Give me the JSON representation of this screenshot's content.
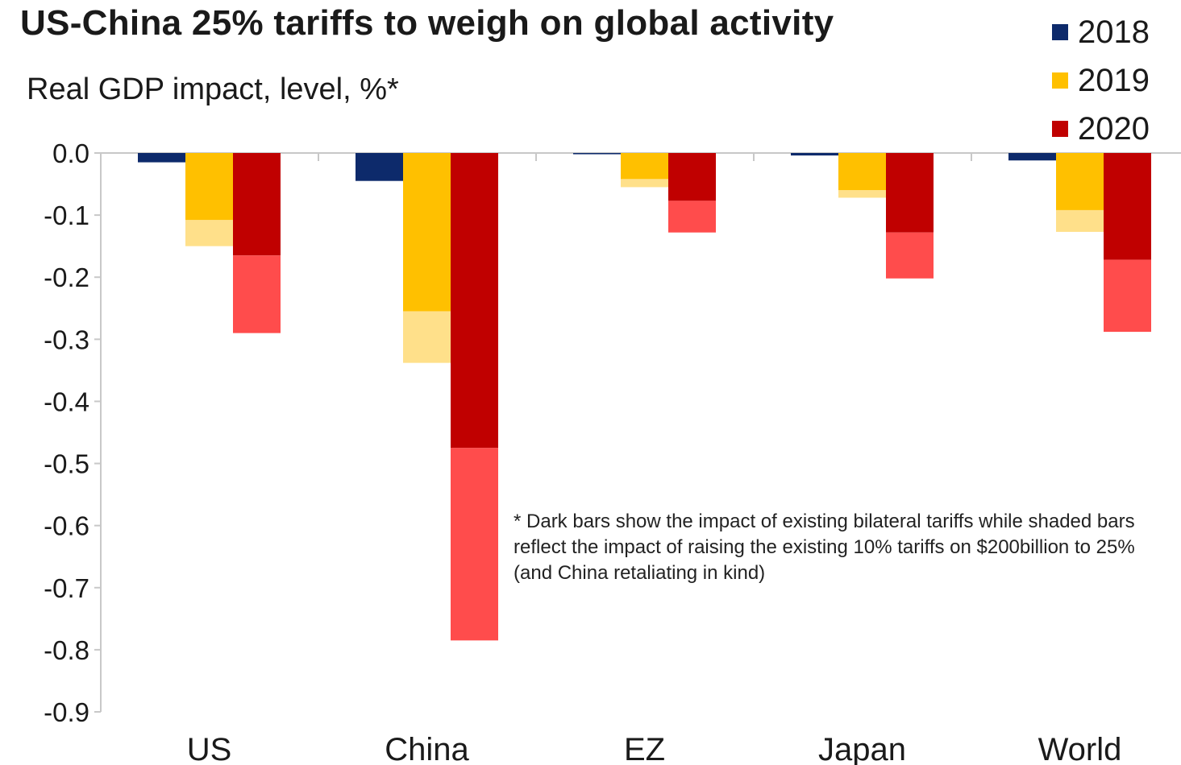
{
  "chart_data": {
    "type": "bar",
    "title": "US-China 25% tariffs to weigh on global activity",
    "subtitle": "Real GDP impact, level, %*",
    "categories": [
      "US",
      "China",
      "EZ",
      "Japan",
      "World"
    ],
    "series": [
      {
        "name": "2018",
        "color": "#0d2a6b",
        "shade_color": "#9aa6c2",
        "existing": [
          -0.015,
          -0.045,
          -0.002,
          -0.004,
          -0.012
        ],
        "total": [
          -0.015,
          -0.045,
          -0.002,
          -0.004,
          -0.012
        ]
      },
      {
        "name": "2019",
        "color": "#ffc000",
        "shade_color": "#ffe08a",
        "existing": [
          -0.108,
          -0.255,
          -0.042,
          -0.06,
          -0.092
        ],
        "total": [
          -0.15,
          -0.338,
          -0.055,
          -0.072,
          -0.127
        ]
      },
      {
        "name": "2020",
        "color": "#c00000",
        "shade_color": "#ff4c4c",
        "existing": [
          -0.165,
          -0.475,
          -0.077,
          -0.128,
          -0.172
        ],
        "total": [
          -0.29,
          -0.785,
          -0.128,
          -0.202,
          -0.288
        ]
      }
    ],
    "ylim": [
      -0.9,
      0.0
    ],
    "yticks": [
      "0.0",
      "-0.1",
      "-0.2",
      "-0.3",
      "-0.4",
      "-0.5",
      "-0.6",
      "-0.7",
      "-0.8",
      "-0.9"
    ],
    "grid": false,
    "legend_position": "top-right",
    "footnote": "* Dark bars show the impact of existing bilateral tariffs while shaded bars reflect the impact of raising the existing 10% tariffs on $200billion to 25% (and China retaliating in kind)"
  }
}
